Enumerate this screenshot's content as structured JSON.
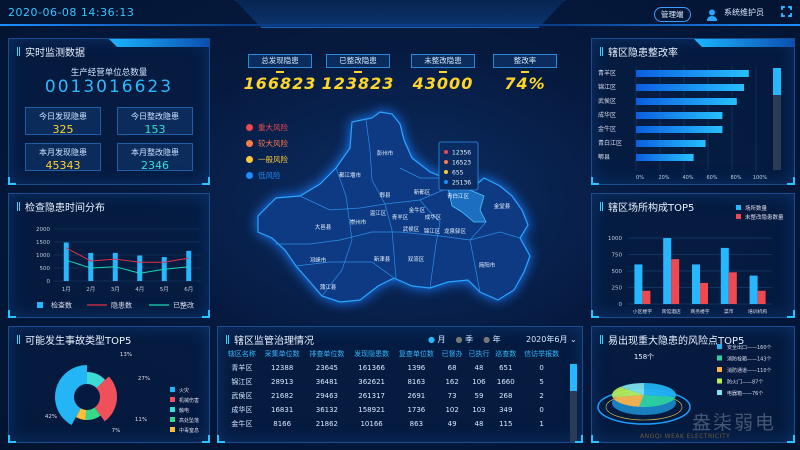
{
  "header": {
    "datetime": "2020-06-08 14:36:13",
    "admin_button": "管理端",
    "user_name": "系统维护员",
    "user_icon": "user-icon",
    "fullscreen_icon": "fullscreen-icon"
  },
  "realtime": {
    "title": "实时监测数据",
    "total_label": "生产经营单位总数量",
    "total_value": "0013016623",
    "boxes": [
      {
        "label": "今日发现隐患",
        "value": "325",
        "color": "#ffd52a"
      },
      {
        "label": "今日整改隐患",
        "value": "153",
        "color": "#34e0d0"
      },
      {
        "label": "本月发现隐患",
        "value": "45343",
        "color": "#ffd52a"
      },
      {
        "label": "本月整改隐患",
        "value": "2346",
        "color": "#34e0d0"
      }
    ]
  },
  "summary": [
    {
      "label": "总发现隐患",
      "value": "166823"
    },
    {
      "label": "已整改隐患",
      "value": "123823"
    },
    {
      "label": "未整改隐患",
      "value": "43000"
    },
    {
      "label": "整改率",
      "value": "74%"
    }
  ],
  "map": {
    "legend": [
      {
        "label": "重大风险",
        "color": "#f0484f"
      },
      {
        "label": "较大风险",
        "color": "#ff7a45"
      },
      {
        "label": "一般风险",
        "color": "#ffc83a"
      },
      {
        "label": "低风险",
        "color": "#1c8cff"
      }
    ],
    "tooltip": [
      {
        "value": "12356",
        "color": "#f0484f"
      },
      {
        "value": "16523",
        "color": "#ff7a45"
      },
      {
        "value": "655",
        "color": "#ffc83a"
      },
      {
        "value": "25136",
        "color": "#1c8cff"
      }
    ],
    "highlighted": "青白江区",
    "districts": [
      "彭州市",
      "都江堰市",
      "郫县",
      "新都区",
      "青白江区",
      "金堂县",
      "温江区",
      "金牛区",
      "青羊区",
      "成华区",
      "大邑县",
      "崇州市",
      "武侯区",
      "锦江区",
      "龙泉驿区",
      "邛崃市",
      "新津县",
      "双流区",
      "简阳市",
      "蒲江县"
    ]
  },
  "chart_data": [
    {
      "id": "inspection",
      "type": "bar+line",
      "title": "检查隐患时间分布",
      "categories": [
        "1月",
        "2月",
        "3月",
        "4月",
        "5月",
        "6月"
      ],
      "ylim": [
        0,
        2000
      ],
      "yticks": [
        0,
        500,
        1000,
        1500,
        2000
      ],
      "series": [
        {
          "name": "检查数",
          "kind": "bar",
          "color": "#27b7ff",
          "values": [
            1480,
            1080,
            1080,
            980,
            920,
            1160
          ]
        },
        {
          "name": "隐患数",
          "kind": "line",
          "color": "#e0304a",
          "values": [
            1270,
            770,
            840,
            720,
            720,
            880
          ]
        },
        {
          "name": "已整改",
          "kind": "line",
          "color": "#19d8b4",
          "values": [
            800,
            500,
            550,
            300,
            450,
            550
          ]
        }
      ],
      "legend": "bottom",
      "grid": true
    },
    {
      "id": "rectification",
      "type": "bar",
      "orientation": "horizontal",
      "title": "辖区隐患整改率",
      "categories": [
        "青羊区",
        "锦江区",
        "武侯区",
        "成华区",
        "金牛区",
        "青白江区",
        "郫县"
      ],
      "values": [
        94,
        90,
        84,
        72,
        72,
        58,
        48
      ],
      "xticks": [
        "0%",
        "20%",
        "40%",
        "60%",
        "80%",
        "100%"
      ],
      "xlim": [
        0,
        100
      ]
    },
    {
      "id": "venues",
      "type": "bar",
      "title": "辖区场所构成TOP5",
      "categories": [
        "小区楼宇",
        "宾馆酒店",
        "商务楼宇",
        "菜市",
        "培训机构"
      ],
      "ylim": [
        0,
        1000
      ],
      "yticks": [
        0,
        250,
        500,
        750,
        1000
      ],
      "series": [
        {
          "name": "场所数量",
          "color": "#27b7ff",
          "values": [
            600,
            1000,
            600,
            850,
            430
          ]
        },
        {
          "name": "未整改隐患数量",
          "color": "#f0484f",
          "values": [
            200,
            680,
            320,
            480,
            200
          ]
        }
      ],
      "legend": "top-right"
    },
    {
      "id": "accidents",
      "type": "pie",
      "title": "可能发生事故类型TOP5",
      "labels": [
        "火灾",
        "机械伤害",
        "触电",
        "高处坠落",
        "中毒窒息"
      ],
      "values": [
        42,
        27,
        13,
        11,
        7
      ],
      "value_labels": [
        "42%",
        "27%",
        "13%",
        "11%",
        "7%"
      ],
      "colors": [
        "#23b5f5",
        "#f0505a",
        "#3ddad6",
        "#36d98a",
        "#ffbf3c"
      ],
      "legend": "right"
    },
    {
      "id": "riskpoints",
      "type": "pie",
      "style": "3d",
      "title": "易出现重大隐患的风险点TOP5",
      "center_label": "158个",
      "labels": [
        "安全出口——160个",
        "消防栓箱——143个",
        "消防通道——110个",
        "防火门——87个",
        "电器箱——76个"
      ],
      "values": [
        160,
        143,
        110,
        87,
        76
      ],
      "colors": [
        "#23b5f5",
        "#2ed3a0",
        "#ffb347",
        "#b8ee5a",
        "#7fe6f0"
      ],
      "legend": "right"
    }
  ],
  "supervision": {
    "title": "辖区监管治理情况",
    "periods": [
      {
        "label": "月",
        "active": true
      },
      {
        "label": "季",
        "active": false
      },
      {
        "label": "年",
        "active": false
      }
    ],
    "date_select": "2020年6月",
    "columns": [
      "辖区名称",
      "采集单位数",
      "排查单位数",
      "发现隐患数",
      "复查单位数",
      "已督办",
      "已执行",
      "巡查数",
      "信访举报数"
    ],
    "rows": [
      [
        "青羊区",
        "12388",
        "23645",
        "161366",
        "1396",
        "68",
        "48",
        "651",
        "0"
      ],
      [
        "锦江区",
        "28913",
        "36481",
        "362621",
        "8163",
        "162",
        "106",
        "1660",
        "5"
      ],
      [
        "武侯区",
        "21682",
        "29463",
        "261317",
        "2691",
        "73",
        "59",
        "268",
        "2"
      ],
      [
        "成华区",
        "16831",
        "36132",
        "158921",
        "1736",
        "102",
        "103",
        "349",
        "0"
      ],
      [
        "金牛区",
        "8166",
        "21862",
        "10166",
        "863",
        "49",
        "48",
        "115",
        "1"
      ]
    ]
  },
  "watermark": {
    "text": "盎柒弱电",
    "subtext": "ANGQI WEAK ELECTRICITY"
  }
}
